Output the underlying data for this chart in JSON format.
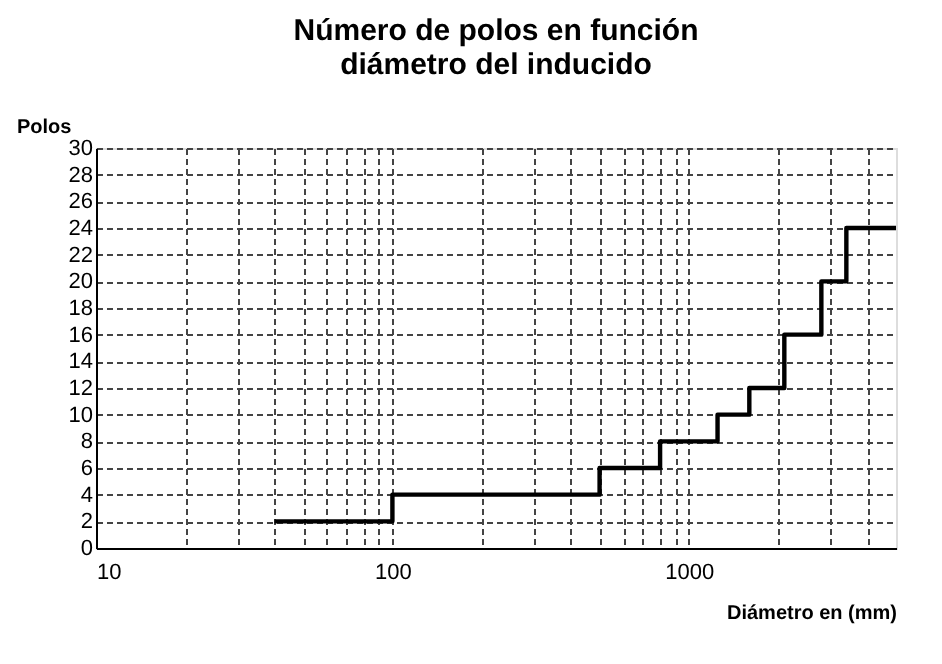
{
  "chart_data": {
    "type": "step",
    "title": [
      "Número de polos en función",
      "diámetro del inducido"
    ],
    "xlabel": "Diámetro en (mm)",
    "ylabel": "Polos",
    "x": [
      40,
      100,
      500,
      800,
      1250,
      1600,
      2100,
      2800,
      3400,
      5000
    ],
    "series": [
      {
        "color": "#000000",
        "values": [
          2,
          4,
          6,
          8,
          10,
          12,
          16,
          20,
          24,
          24
        ]
      }
    ],
    "log": "x",
    "xlim": [
      10,
      5000
    ],
    "ylim": [
      0,
      30
    ],
    "xticks": [
      10,
      {
        "value": 20,
        "label": null
      },
      {
        "value": 30,
        "label": null
      },
      {
        "value": 40,
        "label": null
      },
      {
        "value": 50,
        "label": null
      },
      {
        "value": 60,
        "label": null
      },
      {
        "value": 70,
        "label": null
      },
      {
        "value": 80,
        "label": null
      },
      {
        "value": 90,
        "label": null
      },
      100,
      {
        "value": 200,
        "label": null
      },
      {
        "value": 300,
        "label": null
      },
      {
        "value": 400,
        "label": null
      },
      {
        "value": 500,
        "label": null
      },
      {
        "value": 600,
        "label": null
      },
      {
        "value": 700,
        "label": null
      },
      {
        "value": 800,
        "label": null
      },
      {
        "value": 900,
        "label": null
      },
      1000,
      {
        "value": 2000,
        "label": null
      },
      {
        "value": 3000,
        "label": null
      },
      {
        "value": 4000,
        "label": null
      }
    ],
    "yticks": [
      0,
      2,
      4,
      6,
      8,
      10,
      12,
      14,
      16,
      18,
      20,
      22,
      24,
      26,
      28,
      30
    ],
    "grid": true,
    "marker": "none",
    "line_style": "solid"
  }
}
